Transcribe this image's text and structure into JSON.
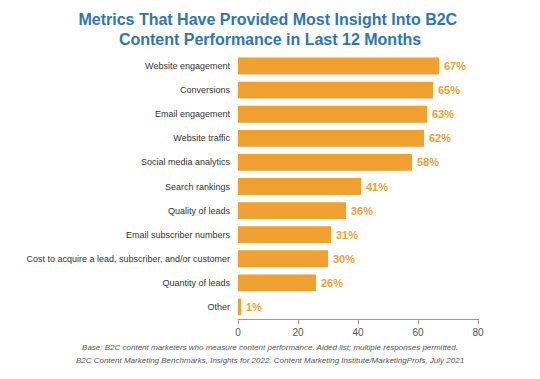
{
  "chart_data": {
    "type": "bar",
    "orientation": "horizontal",
    "title": "Metrics That Have Provided Most Insight Into B2C Content Performance in Last 12 Months",
    "categories": [
      "Website engagement",
      "Conversions",
      "Email engagement",
      "Website traffic",
      "Social media analytics",
      "Search rankings",
      "Quality of leads",
      "Email subscriber numbers",
      "Cost to acquire a lead, subscriber, and/or customer",
      "Quantity of leads",
      "Other"
    ],
    "values": [
      67,
      65,
      63,
      62,
      58,
      41,
      36,
      31,
      30,
      26,
      1
    ],
    "value_labels": [
      "67%",
      "65%",
      "63%",
      "62%",
      "58%",
      "41%",
      "36%",
      "31%",
      "30%",
      "26%",
      "1%"
    ],
    "data_labels": true,
    "color": "#f0a030",
    "xlim": [
      0,
      80
    ],
    "xticks": [
      0,
      20,
      40,
      60,
      80
    ],
    "grid": false,
    "annotations": [
      "Base: B2C content marketers who measure content performance. Aided list; multiple responses permitted.",
      "B2C Content Marketing Benchmarks, Insights for 2022. Content Marketing Institute/MarketingProfs, July 2021"
    ]
  }
}
